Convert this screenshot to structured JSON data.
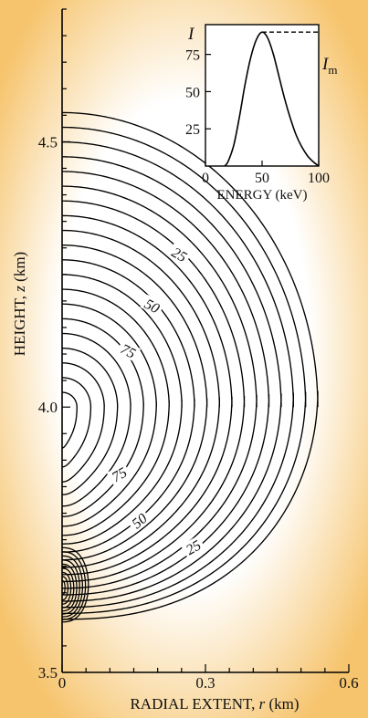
{
  "background": {
    "edge": "#f6c46d",
    "center": "#ffffff"
  },
  "chart_data": [
    {
      "type": "line",
      "subtype": "contour",
      "xlabel": {
        "prefix": "RADIAL EXTENT, ",
        "var": "r",
        "suffix": " (km)"
      },
      "ylabel": {
        "prefix": "HEIGHT, ",
        "var": "z",
        "suffix": " (km)"
      },
      "xlim": [
        0,
        0.6
      ],
      "ylim": [
        3.5,
        4.75
      ],
      "xticks": [
        0,
        0.3,
        0.6
      ],
      "xtick_labels": [
        "0",
        "0.3",
        "0.6"
      ],
      "yticks": [
        3.5,
        4.0,
        4.5
      ],
      "ytick_labels": [
        "3.5",
        "4.0",
        "4.5"
      ],
      "source_center": [
        0.0,
        4.0
      ],
      "contour_levels": [
        5,
        10,
        15,
        20,
        25,
        30,
        35,
        40,
        45,
        50,
        55,
        60,
        65,
        70,
        75,
        80,
        85,
        90,
        95,
        100
      ],
      "outer_contour": {
        "top_z": 4.555,
        "max_r": 0.535,
        "bottom_z": 3.6
      },
      "secondary_source": [
        0.0,
        3.665
      ],
      "contour_labels": [
        {
          "text": "25",
          "r": 0.245,
          "z": 4.287,
          "angle": 30
        },
        {
          "text": "50",
          "r": 0.188,
          "z": 4.19,
          "angle": 28
        },
        {
          "text": "75",
          "r": 0.138,
          "z": 4.105,
          "angle": 28
        },
        {
          "text": "75",
          "r": 0.12,
          "z": 3.872,
          "angle": -30
        },
        {
          "text": "50",
          "r": 0.162,
          "z": 3.785,
          "angle": -40
        },
        {
          "text": "25",
          "r": 0.275,
          "z": 3.735,
          "angle": -30
        }
      ],
      "grid": false
    },
    {
      "type": "line",
      "subtype": "inset",
      "xlabel": "ENERGY (keV)",
      "ylabel": "I",
      "xlim": [
        0,
        100
      ],
      "ylim": [
        0,
        95
      ],
      "xticks": [
        0,
        50,
        100
      ],
      "yticks": [
        25,
        50,
        75
      ],
      "reference_line": {
        "label": "I",
        "subscript": "m",
        "y": 90
      },
      "x": [
        17,
        20,
        25,
        30,
        35,
        40,
        45,
        50,
        55,
        60,
        65,
        70,
        75,
        80,
        85,
        90,
        95,
        100
      ],
      "y": [
        0,
        3,
        14,
        33,
        55,
        73,
        85,
        90,
        86,
        75,
        60,
        45,
        32,
        21,
        13,
        7,
        3,
        0
      ],
      "grid": false
    }
  ]
}
